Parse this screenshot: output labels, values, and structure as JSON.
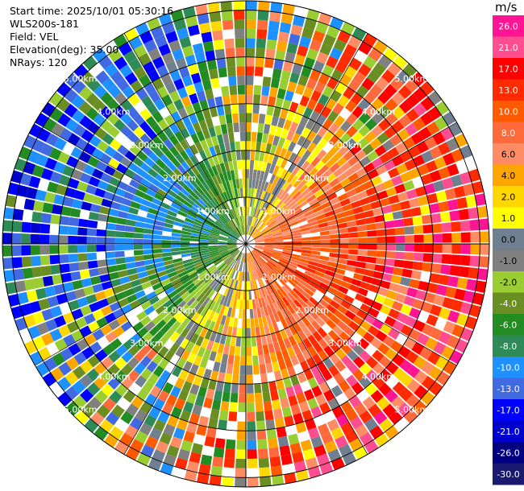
{
  "header": {
    "start_time": "Start time: 2025/10/01 05:30:16",
    "instrument": "WLS200s-181",
    "field": "Field: VEL",
    "elevation": "Elevation(deg): 35.00",
    "nrays": "NRays: 120"
  },
  "chart_data": {
    "type": "heatmap",
    "projection": "polar PPI",
    "field": "VEL",
    "units": "m/s",
    "n_rays": 120,
    "max_range_km": 5.2,
    "range_rings_km": [
      1,
      2,
      3,
      4,
      5
    ],
    "range_ring_labels": [
      "1.00km",
      "2.00km",
      "3.00km",
      "4.00km",
      "5.00km"
    ],
    "colorbar": {
      "unit": "m/s",
      "ticks": [
        "26.0",
        "21.0",
        "17.0",
        "13.0",
        "10.0",
        "8.0",
        "6.0",
        "4.0",
        "2.0",
        "1.0",
        "0.0",
        "-1.0",
        "-2.0",
        "-4.0",
        "-6.0",
        "-8.0",
        "-10.0",
        "-13.0",
        "-17.0",
        "-21.0",
        "-26.0",
        "-30.0"
      ],
      "colors": [
        "#ff1493",
        "#ff4d8f",
        "#ff0000",
        "#ff2a00",
        "#ff5a00",
        "#ff6a3c",
        "#ff8c64",
        "#ffa500",
        "#ffd700",
        "#ffff00",
        "#708090",
        "#808080",
        "#9acd32",
        "#6b8e23",
        "#228b22",
        "#2e8b57",
        "#1e90ff",
        "#4169e1",
        "#0000ff",
        "#0000cd",
        "#000080",
        "#191970"
      ]
    },
    "pattern": {
      "positive_velocity_sector": "east and south (yellow to orange/red)",
      "negative_velocity_sector": "west and north-west (green shades)",
      "near_zero": "grey along the north-south axis"
    },
    "grid": true
  }
}
